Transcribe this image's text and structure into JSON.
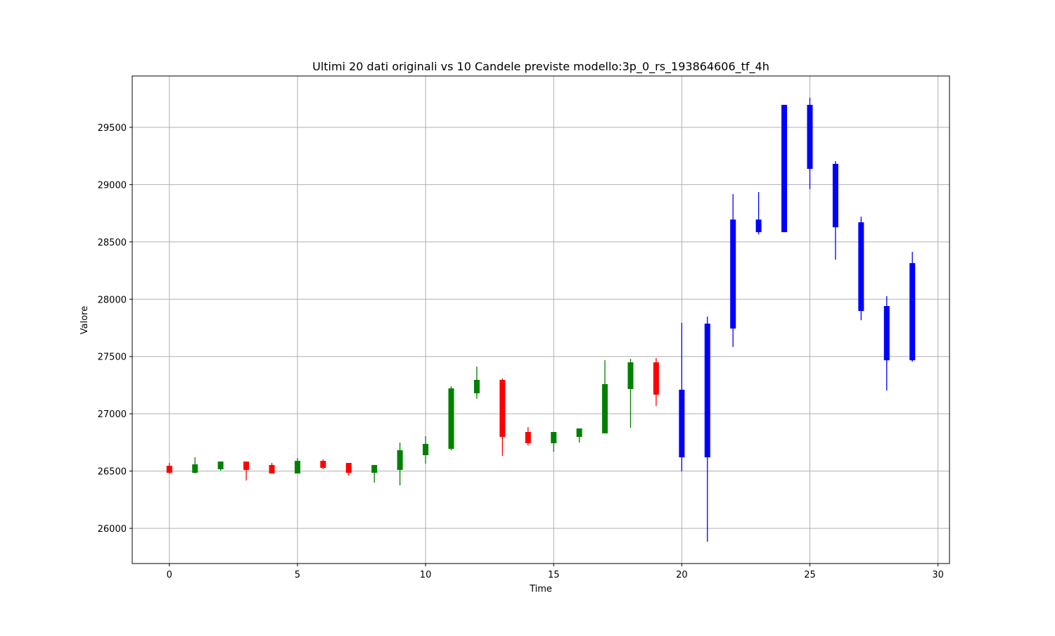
{
  "chart_data": {
    "type": "candlestick",
    "title": "Ultimi 20 dati originali vs 10 Candele previste modello:3p_0_rs_193864606_tf_4h",
    "x_label": "Time",
    "y_label": "Valore",
    "xlim": [
      -1.45,
      30.45
    ],
    "xticks": [
      0,
      5,
      10,
      15,
      20,
      25,
      30
    ],
    "ylim": [
      25693,
      29948
    ],
    "yticks": [
      26000,
      26500,
      27000,
      27500,
      28000,
      28500,
      29000,
      29500
    ],
    "grid": true,
    "series": [
      {
        "up_color": "#008000",
        "down_color": "#ff0000",
        "x": [
          0,
          1,
          2,
          3,
          4,
          5,
          6,
          7,
          8,
          9,
          10,
          11,
          12,
          13,
          14,
          15,
          16,
          17,
          18,
          19
        ],
        "open": [
          26546,
          26485,
          26516,
          26583,
          26553,
          26479,
          26589,
          26571,
          26485,
          26510,
          26639,
          26694,
          27179,
          27296,
          26841,
          26743,
          26798,
          26829,
          27216,
          27449
        ],
        "high": [
          26571,
          26620,
          26583,
          26583,
          26571,
          26614,
          26602,
          26571,
          26553,
          26749,
          26804,
          27240,
          27412,
          27308,
          26884,
          26841,
          26872,
          27468,
          27480,
          27486
        ],
        "low": [
          26479,
          26479,
          26504,
          26418,
          26479,
          26479,
          26516,
          26460,
          26399,
          26375,
          26565,
          26682,
          27130,
          26632,
          26724,
          26669,
          26749,
          26829,
          26878,
          27068
        ],
        "close": [
          26485,
          26559,
          26583,
          26510,
          26479,
          26589,
          26528,
          26485,
          26553,
          26682,
          26737,
          27222,
          27296,
          26798,
          26743,
          26841,
          26872,
          27259,
          27449,
          27167
        ]
      },
      {
        "color": "#0000ff",
        "x": [
          20,
          21,
          22,
          23,
          24,
          25,
          26,
          27,
          28,
          29
        ],
        "open": [
          27210,
          26620,
          27744,
          28695,
          28585,
          29696,
          29181,
          28671,
          27940,
          27467
        ],
        "high": [
          27793,
          27848,
          28917,
          28935,
          29696,
          29758,
          29205,
          28720,
          28026,
          28413
        ],
        "low": [
          26497,
          25883,
          27584,
          28566,
          28585,
          28960,
          28345,
          27817,
          27203,
          27455
        ],
        "close": [
          26620,
          27787,
          28695,
          28585,
          29696,
          29137,
          28628,
          27897,
          27467,
          28315
        ]
      }
    ]
  }
}
